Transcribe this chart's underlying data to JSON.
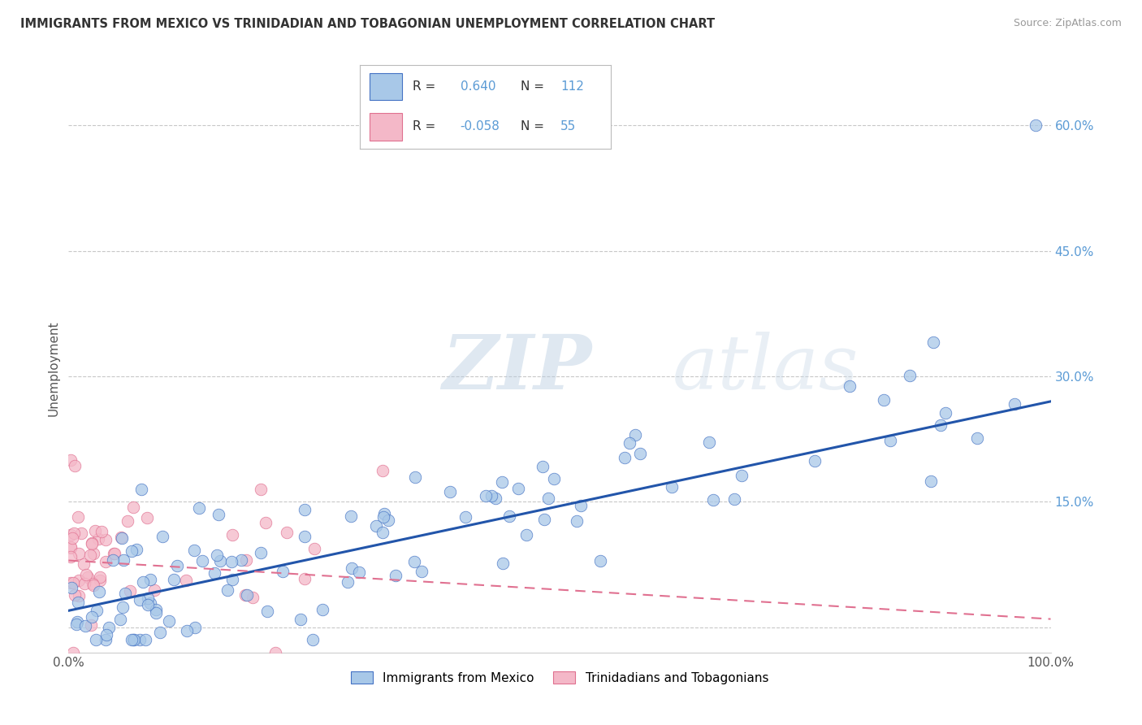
{
  "title": "IMMIGRANTS FROM MEXICO VS TRINIDADIAN AND TOBAGONIAN UNEMPLOYMENT CORRELATION CHART",
  "source": "Source: ZipAtlas.com",
  "ylabel": "Unemployment",
  "watermark": "ZIPatlas",
  "xlim": [
    0,
    100
  ],
  "ylim": [
    -3,
    65
  ],
  "yticks": [
    0,
    15,
    30,
    45,
    60
  ],
  "ytick_labels": [
    "",
    "15.0%",
    "30.0%",
    "45.0%",
    "60.0%"
  ],
  "xticks": [
    0,
    100
  ],
  "xtick_labels": [
    "0.0%",
    "100.0%"
  ],
  "blue_color": "#a8c8e8",
  "blue_edge_color": "#4472c4",
  "blue_line_color": "#2255aa",
  "pink_color": "#f4b8c8",
  "pink_edge_color": "#e07090",
  "pink_line_color": "#e07090",
  "background_color": "#ffffff",
  "grid_color": "#c8c8c8",
  "title_color": "#333333",
  "source_color": "#999999",
  "tick_color": "#5b9bd5",
  "watermark_color": "#c8d8ec",
  "series_blue_name": "Immigrants from Mexico",
  "series_pink_name": "Trinidadians and Tobagonians",
  "legend_R_blue": "0.640",
  "legend_N_blue": "112",
  "legend_R_pink": "-0.058",
  "legend_N_pink": "55"
}
